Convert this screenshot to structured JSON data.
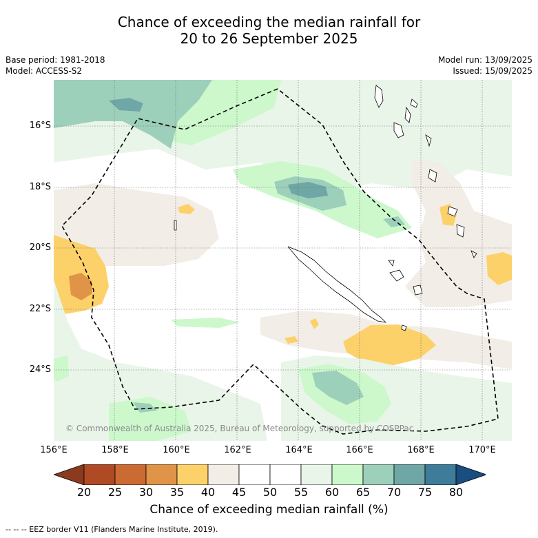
{
  "title_line1": "Chance of exceeding the median rainfall for",
  "title_line2": "20 to 26 September 2025",
  "base_period": "Base period: 1981-2018",
  "model": "Model: ACCESS-S2",
  "model_run": "Model run: 13/09/2025",
  "issued": "Issued: 15/09/2025",
  "copyright": "© Commonwealth of Australia 2025, Bureau of Meteorology, supported by COSPPac",
  "lat_labels": [
    "16°S",
    "18°S",
    "20°S",
    "22°S",
    "24°S"
  ],
  "lon_labels": [
    "156°E",
    "158°E",
    "160°E",
    "162°E",
    "164°E",
    "166°E",
    "168°E",
    "170°E"
  ],
  "colorbar": {
    "title": "Chance of exceeding median rainfall (%)",
    "ticks": [
      "20",
      "25",
      "30",
      "35",
      "40",
      "45",
      "50",
      "55",
      "60",
      "65",
      "70",
      "75",
      "80"
    ],
    "colors": [
      "#8b3a1e",
      "#b04a25",
      "#cc6a33",
      "#e09448",
      "#fdd16a",
      "#f2ede6",
      "#ffffff",
      "#ffffff",
      "#e9f5e8",
      "#ccf8cc",
      "#9dd0bb",
      "#6fa7a6",
      "#3f7c99",
      "#1a4e80"
    ]
  },
  "footer": "-- -- -- EEZ border V11 (Flanders Marine Institute, 2019).",
  "colors": {
    "sea": "#ffffff",
    "land_outline": "#000000",
    "eez": "#000000",
    "grid": "#666666"
  }
}
